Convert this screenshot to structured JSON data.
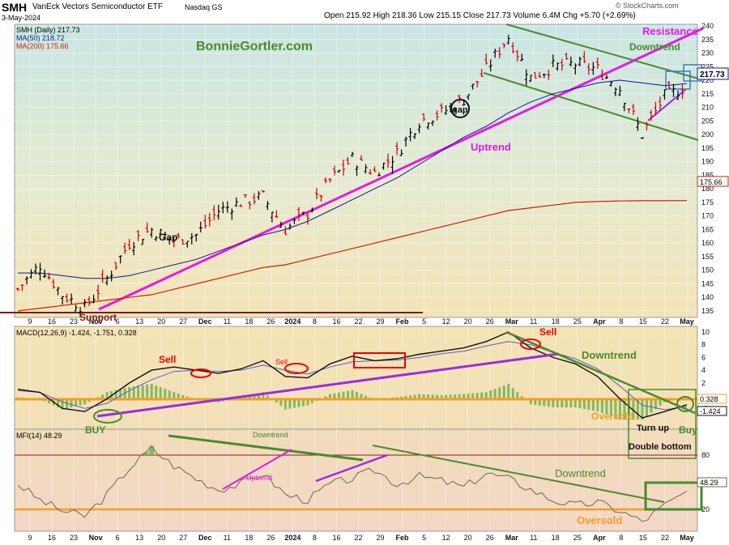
{
  "header": {
    "symbol": "SMH",
    "description": "VanEck Vectors Semiconductor ETF",
    "exchange": "Nasdaq GS",
    "date": "3-May-2024",
    "ohlc_label": "Open 215.92  High 218.36  Low 215.15  Close 217.73  Volume 6.4M  Chg +5.70 (+2.69%)",
    "watermark": "© StockCharts.com"
  },
  "price_panel": {
    "legend": {
      "smh": "SMH (Daily) 217.73",
      "ma50": "MA(50) 218.72",
      "ma200": "MA(200) 175.66"
    },
    "y_ticks": [
      135,
      140,
      145,
      150,
      155,
      160,
      165,
      170,
      175,
      180,
      185,
      190,
      195,
      200,
      205,
      210,
      215,
      220,
      225,
      230,
      235,
      240
    ],
    "last_price_label": "217.73",
    "ma200_label": "175.66",
    "colors": {
      "ma50": "#0a1a8c",
      "ma200": "#cc2200",
      "uptrend": "#e619e6",
      "channel": "#4a8a2a",
      "support": "#8b1a1a",
      "up": "#000000",
      "down": "#d00000"
    },
    "annotations": {
      "brand": "BonnieGortler.com",
      "resistance": "Resistance",
      "downtrend": "Downtrend",
      "uptrend": "Uptrend",
      "gap1": "Gap",
      "gap2": "gap",
      "support": "Support"
    }
  },
  "macd_panel": {
    "legend": "MACD(12,26,9) -1.424, -1.751, 0.328",
    "y_ticks": [
      -2,
      2,
      4,
      6,
      8,
      10
    ],
    "tick_labels": {
      "0": "0.328",
      "1": "-1.424"
    },
    "annotations": {
      "sell1": "Sell",
      "sell2": "Sell",
      "sell3": "Sell",
      "downtrend": "Downtrend",
      "buy1": "BUY",
      "oversold": "Oversold",
      "turnup": "Turn up",
      "buy2": "Buy",
      "double_bottom": "Double bottom"
    }
  },
  "mfi_panel": {
    "legend": "MFI(14) 48.29",
    "y_ticks": [
      20,
      80
    ],
    "value_label": "48.29",
    "annotations": {
      "downtrend_small": "Downtrend",
      "uptrend_small": "Uptrend",
      "downtrend": "Downtrend",
      "oversold": "Oversold"
    }
  },
  "x_axis": {
    "labels": [
      "9",
      "16",
      "23",
      "Nov",
      "6",
      "13",
      "20",
      "27",
      "Dec",
      "11",
      "18",
      "26",
      "2024",
      "8",
      "16",
      "22",
      "29",
      "Feb",
      "5",
      "12",
      "20",
      "26",
      "Mar",
      "11",
      "18",
      "25",
      "Apr",
      "8",
      "15",
      "22",
      "May"
    ]
  },
  "chart_data": [
    {
      "type": "line",
      "title": "SMH (Daily) 217.73",
      "series": [
        {
          "name": "SMH (Daily) 217.73",
          "x": [
            "Oct 9",
            "Oct 16",
            "Oct 23",
            "Oct 31",
            "Nov 6",
            "Nov 13",
            "Nov 20",
            "Nov 27",
            "Dec 4",
            "Dec 11",
            "Dec 18",
            "Dec 26",
            "Jan 2",
            "Jan 8",
            "Jan 16",
            "Jan 22",
            "Jan 29",
            "Feb 5",
            "Feb 12",
            "Feb 20",
            "Feb 26",
            "Mar 4",
            "Mar 11",
            "Mar 18",
            "Mar 25",
            "Apr 1",
            "Apr 8",
            "Apr 15",
            "Apr 22",
            "Apr 29",
            "May 3"
          ],
          "values": [
            143,
            152,
            141,
            136,
            147,
            160,
            165,
            161,
            163,
            172,
            175,
            177,
            165,
            171,
            183,
            191,
            186,
            193,
            205,
            208,
            213,
            224,
            236,
            221,
            225,
            226,
            224,
            217,
            200,
            214,
            217.73
          ]
        },
        {
          "name": "MA(50) 218.72",
          "values": [
            149,
            149,
            148,
            147,
            147,
            148,
            150,
            152,
            154,
            157,
            160,
            163,
            165,
            168,
            172,
            176,
            180,
            184,
            189,
            194,
            199,
            203,
            208,
            212,
            215,
            217,
            219,
            220,
            219,
            218,
            218.72
          ]
        },
        {
          "name": "MA(200) 175.66",
          "values": [
            135,
            136,
            137,
            138,
            139,
            140,
            141,
            143,
            145,
            147,
            149,
            151,
            152,
            154,
            156,
            158,
            160,
            162,
            164,
            166,
            168,
            170,
            172,
            173,
            174,
            175,
            175.3,
            175.5,
            175.6,
            175.6,
            175.66
          ]
        }
      ],
      "ylim": [
        133,
        241
      ]
    },
    {
      "type": "line",
      "title": "MACD(12,26,9) -1.424, -1.751, 0.328",
      "series": [
        {
          "name": "MACD(12,26,9)",
          "values": [
            1,
            0.5,
            -2,
            -2.5,
            -0.5,
            2,
            4,
            4.5,
            4,
            3.5,
            4.2,
            5.5,
            3,
            2.8,
            5,
            6.2,
            5.5,
            5.8,
            6.5,
            7,
            7.5,
            8.5,
            10,
            7.5,
            6,
            5,
            3,
            -0.5,
            -3.5,
            -2.5,
            -1.424
          ]
        },
        {
          "name": "Signal",
          "values": [
            0.8,
            0.5,
            -1,
            -2,
            -1.2,
            0.8,
            2.5,
            3.8,
            4,
            3.8,
            4,
            4.8,
            4,
            3.4,
            4.5,
            5.3,
            5.5,
            5.6,
            6,
            6.6,
            7,
            7.8,
            8.5,
            8,
            6.8,
            5.8,
            4.2,
            1.5,
            -1.5,
            -2.2,
            -1.751
          ]
        }
      ],
      "ylim": [
        -4.5,
        10.5
      ]
    },
    {
      "type": "area",
      "title": "MFI(14) 48.29",
      "series": [
        {
          "name": "MFI(14)",
          "values": [
            55,
            40,
            30,
            25,
            45,
            70,
            88,
            72,
            60,
            50,
            55,
            65,
            45,
            40,
            55,
            60,
            68,
            55,
            62,
            58,
            52,
            65,
            60,
            50,
            40,
            35,
            38,
            30,
            20,
            35,
            48.29
          ]
        }
      ],
      "ylim": [
        14,
        100
      ]
    }
  ]
}
